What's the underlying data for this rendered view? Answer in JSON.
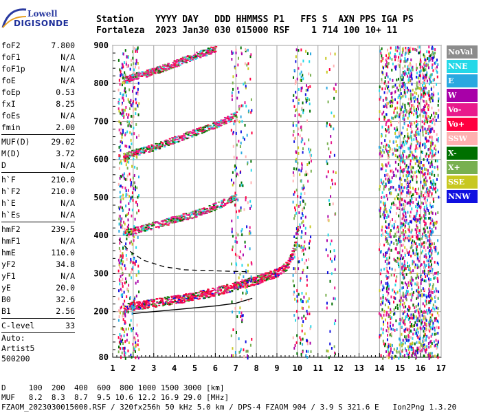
{
  "logo": {
    "line1": "Lowell",
    "line2": "DIGISONDE"
  },
  "header": {
    "line1": "Station    YYYY DAY   DDD HHMMSS P1   FFS S  AXN PPS IGA PS",
    "line2": "Fortaleza  2023 Jan30 030 015000 RSF    1 714 100 10+ 11"
  },
  "params": [
    {
      "name": "foF2",
      "value": "7.800"
    },
    {
      "name": "foF1",
      "value": "N/A"
    },
    {
      "name": "foF1p",
      "value": "N/A"
    },
    {
      "name": "foE",
      "value": "N/A"
    },
    {
      "name": "foEp",
      "value": "0.53"
    },
    {
      "name": "fxI",
      "value": "8.25"
    },
    {
      "name": "foEs",
      "value": "N/A"
    },
    {
      "name": "fmin",
      "value": "2.00"
    },
    {
      "sep": true
    },
    {
      "name": "MUF(D)",
      "value": "29.02"
    },
    {
      "name": "M(D)",
      "value": "3.72"
    },
    {
      "name": "D",
      "value": "N/A"
    },
    {
      "sep": true
    },
    {
      "name": "h`F",
      "value": "210.0"
    },
    {
      "name": "h`F2",
      "value": "210.0"
    },
    {
      "name": "h`E",
      "value": "N/A"
    },
    {
      "name": "h`Es",
      "value": "N/A"
    },
    {
      "sep": true
    },
    {
      "name": "hmF2",
      "value": "239.5"
    },
    {
      "name": "hmF1",
      "value": "N/A"
    },
    {
      "name": "hmE",
      "value": "110.0"
    },
    {
      "name": "yF2",
      "value": "34.8"
    },
    {
      "name": "yF1",
      "value": "N/A"
    },
    {
      "name": "yE",
      "value": "20.0"
    },
    {
      "name": "B0",
      "value": "32.6"
    },
    {
      "name": "B1",
      "value": "2.56"
    },
    {
      "sep": true
    },
    {
      "name": "C-level",
      "value": "33"
    },
    {
      "sep": true
    }
  ],
  "auto": {
    "line1": "Auto:",
    "line2": "Artist5",
    "line3": "500200"
  },
  "legend": [
    {
      "label": "NoVal",
      "color": "#8c8c8c"
    },
    {
      "label": "NNE",
      "color": "#24d8e8"
    },
    {
      "label": "E",
      "color": "#2aa8e0"
    },
    {
      "label": "W",
      "color": "#a800a8"
    },
    {
      "label": "Vo-",
      "color": "#e81a8c"
    },
    {
      "label": "Vo+",
      "color": "#ff0040"
    },
    {
      "label": "SSW",
      "color": "#ffb0b0"
    },
    {
      "label": "X-",
      "color": "#007000"
    },
    {
      "label": "X+",
      "color": "#78b050"
    },
    {
      "label": "SSE",
      "color": "#c8c820"
    },
    {
      "label": "NNW",
      "color": "#1010e0"
    }
  ],
  "bottom": {
    "line1": "D     100  200  400  600  800 1000 1500 3000 [km]",
    "line2": "MUF   8.2  8.3  8.7  9.5 10.6 12.2 16.9 29.0 [MHz]",
    "line3": "FZAOM_2023030015000.RSF / 320fx256h 50 kHz 5.0 km / DPS-4 FZAOM 904 / 3.9 S 321.6 E   Ion2Png 1.3.20"
  },
  "chart_data": {
    "type": "scatter",
    "title": "",
    "xlabel": "",
    "ylabel": "",
    "xlim": [
      1,
      17
    ],
    "ylim": [
      80,
      900
    ],
    "xticks": [
      1,
      2,
      3,
      4,
      5,
      6,
      7,
      8,
      9,
      10,
      11,
      12,
      13,
      14,
      15,
      16,
      17
    ],
    "yticks": [
      80,
      200,
      300,
      400,
      500,
      600,
      700,
      800,
      900
    ],
    "grid": true,
    "series": [
      {
        "name": "Vo+ / Vo- / X trace (1st hop)",
        "x": [
          1.5,
          2.0,
          3.0,
          4.0,
          5.0,
          6.0,
          7.0,
          8.0,
          8.5,
          9.0,
          9.5,
          9.8,
          10.0
        ],
        "y": [
          205,
          212,
          220,
          228,
          238,
          250,
          265,
          280,
          290,
          300,
          320,
          360,
          420
        ]
      },
      {
        "name": "2nd hop",
        "x": [
          1.5,
          2.0,
          3.0,
          4.0,
          5.0,
          6.0,
          7.0
        ],
        "y": [
          405,
          410,
          425,
          440,
          455,
          475,
          500
        ]
      },
      {
        "name": "3rd hop",
        "x": [
          1.5,
          2.0,
          3.0,
          4.0,
          5.0,
          6.0,
          7.0
        ],
        "y": [
          605,
          615,
          630,
          650,
          670,
          690,
          715
        ]
      },
      {
        "name": "4th hop",
        "x": [
          1.5,
          2.0,
          3.0,
          4.0,
          5.0,
          6.0
        ],
        "y": [
          805,
          815,
          830,
          850,
          870,
          890
        ]
      }
    ],
    "profile_curve": {
      "x": [
        2.0,
        3.0,
        4.0,
        5.0,
        6.0,
        7.0,
        7.8
      ],
      "y": [
        195,
        200,
        205,
        210,
        215,
        222,
        235
      ]
    },
    "dashed_curve": {
      "x": [
        1.3,
        1.8,
        2.5,
        3.5,
        4.5,
        5.5,
        7.5
      ],
      "y": [
        390,
        360,
        335,
        318,
        310,
        308,
        305
      ]
    }
  }
}
